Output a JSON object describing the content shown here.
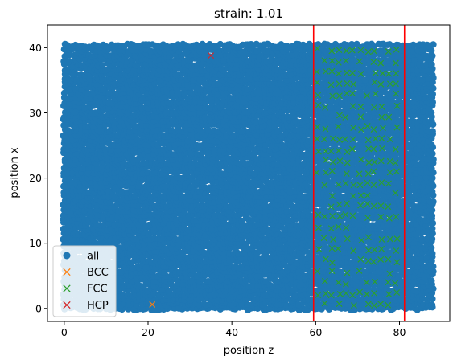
{
  "chart_data": {
    "type": "scatter",
    "title": "strain: 1.01",
    "xlabel": "position z",
    "ylabel": "position x",
    "xlim": [
      -4,
      92
    ],
    "ylim": [
      -2,
      43.5
    ],
    "xticks": [
      0,
      20,
      40,
      60,
      80
    ],
    "yticks": [
      0,
      10,
      20,
      30,
      40
    ],
    "grid": false,
    "legend_position": "lower-left",
    "series": [
      {
        "name": "all",
        "marker": "circle",
        "color": "#1f77b4",
        "description_region": {
          "z_range": [
            0,
            88
          ],
          "x_range": [
            0,
            41
          ]
        }
      },
      {
        "name": "BCC",
        "marker": "x",
        "color": "#ff7f0e",
        "points": [
          [
            21,
            0.6
          ]
        ]
      },
      {
        "name": "FCC",
        "marker": "x",
        "color": "#2ca02c",
        "region": {
          "z_range": [
            60,
            80
          ],
          "x_range": [
            0,
            41
          ]
        }
      },
      {
        "name": "HCP",
        "marker": "x",
        "color": "#d62728",
        "points": [
          [
            35,
            38.8
          ]
        ]
      }
    ],
    "vertical_lines": [
      {
        "x": 59.5,
        "color": "#ff0000"
      },
      {
        "x": 81.2,
        "color": "#ff0000"
      }
    ]
  }
}
